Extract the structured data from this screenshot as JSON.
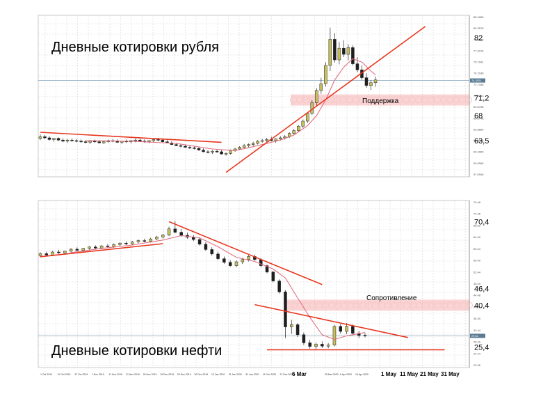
{
  "chart_data": [
    {
      "type": "candlestick",
      "title": "Дневные котировки рубля",
      "price_labels": [
        "82",
        "71,2",
        "68",
        "63,5"
      ],
      "small_axis_labels": [
        "85.4080",
        "80.3578",
        "79.5330",
        "77.3210",
        "75.7941",
        "74.2188",
        "72.7448",
        "70.2213",
        "69.6758",
        "65.6748",
        "63.8680",
        "62.2059",
        "60.4960",
        "59.0565",
        "57.6946"
      ],
      "last_price": "74.3521",
      "x_labels": [],
      "support_zone_label": "Поддержка",
      "support_zone_color": "#f4a0a0",
      "trendline_color": "#e8361e",
      "ma_color": "#e07080",
      "up_candle_color": "#c8c060",
      "down_candle_color": "#1e1e1e",
      "ylim": [
        57,
        86
      ],
      "candles": [
        [
          0,
          63.9,
          64.6,
          63.6,
          64.2
        ],
        [
          1,
          64.2,
          64.5,
          63.8,
          64.0
        ],
        [
          2,
          64.0,
          64.3,
          63.5,
          63.7
        ],
        [
          3,
          63.7,
          64.0,
          63.3,
          63.9
        ],
        [
          4,
          63.9,
          64.1,
          63.4,
          63.6
        ],
        [
          5,
          63.6,
          63.9,
          63.2,
          63.4
        ],
        [
          6,
          63.4,
          63.8,
          63.1,
          63.6
        ],
        [
          7,
          63.6,
          63.9,
          63.3,
          63.5
        ],
        [
          8,
          63.5,
          63.8,
          63.2,
          63.4
        ],
        [
          9,
          63.4,
          63.7,
          63.1,
          63.3
        ],
        [
          10,
          63.3,
          63.6,
          63.0,
          63.2
        ],
        [
          11,
          63.2,
          63.6,
          62.9,
          63.4
        ],
        [
          12,
          63.4,
          63.7,
          63.1,
          63.3
        ],
        [
          13,
          63.3,
          63.6,
          63.0,
          63.1
        ],
        [
          14,
          63.1,
          63.5,
          62.9,
          63.3
        ],
        [
          15,
          63.3,
          63.7,
          63.1,
          63.5
        ],
        [
          16,
          63.5,
          63.8,
          63.2,
          63.4
        ],
        [
          17,
          63.4,
          63.7,
          63.1,
          63.2
        ],
        [
          18,
          63.2,
          63.5,
          62.9,
          63.4
        ],
        [
          19,
          63.4,
          63.7,
          63.1,
          63.3
        ],
        [
          20,
          63.3,
          63.6,
          63.0,
          63.5
        ],
        [
          21,
          63.5,
          63.9,
          63.2,
          63.6
        ],
        [
          22,
          63.6,
          63.9,
          63.3,
          63.4
        ],
        [
          23,
          63.4,
          63.7,
          63.1,
          63.3
        ],
        [
          24,
          63.3,
          63.6,
          63.0,
          63.5
        ],
        [
          25,
          63.5,
          63.8,
          63.2,
          63.7
        ],
        [
          26,
          63.7,
          64.0,
          63.4,
          63.6
        ],
        [
          27,
          63.6,
          63.9,
          63.2,
          63.3
        ],
        [
          28,
          63.3,
          63.6,
          63.0,
          63.1
        ],
        [
          29,
          63.1,
          63.4,
          62.7,
          62.8
        ],
        [
          30,
          62.8,
          63.1,
          62.5,
          62.6
        ],
        [
          31,
          62.6,
          62.9,
          62.3,
          62.5
        ],
        [
          32,
          62.5,
          62.8,
          62.2,
          62.3
        ],
        [
          33,
          62.3,
          62.6,
          62.0,
          62.2
        ],
        [
          34,
          62.2,
          62.5,
          61.9,
          62.1
        ],
        [
          35,
          62.1,
          62.4,
          61.7,
          61.8
        ],
        [
          36,
          61.8,
          62.1,
          61.4,
          61.5
        ],
        [
          37,
          61.5,
          61.8,
          61.2,
          61.4
        ],
        [
          38,
          61.4,
          61.8,
          61.1,
          61.6
        ],
        [
          39,
          61.6,
          62.0,
          61.3,
          61.5
        ],
        [
          40,
          61.5,
          61.8,
          61.0,
          61.1
        ],
        [
          41,
          61.1,
          61.4,
          60.8,
          61.2
        ],
        [
          42,
          61.2,
          61.9,
          61.0,
          61.7
        ],
        [
          43,
          61.7,
          62.2,
          61.5,
          62.0
        ],
        [
          44,
          62.0,
          62.5,
          61.8,
          62.3
        ],
        [
          45,
          62.3,
          62.9,
          62.1,
          62.6
        ],
        [
          46,
          62.6,
          63.0,
          62.3,
          62.8
        ],
        [
          47,
          62.8,
          63.3,
          62.5,
          63.0
        ],
        [
          48,
          63.0,
          63.6,
          62.8,
          63.4
        ],
        [
          49,
          63.4,
          63.8,
          63.1,
          63.5
        ],
        [
          50,
          63.5,
          64.0,
          63.2,
          63.7
        ],
        [
          51,
          63.7,
          64.2,
          63.4,
          63.5
        ],
        [
          52,
          63.5,
          63.9,
          63.1,
          63.8
        ],
        [
          53,
          63.8,
          64.3,
          63.5,
          64.0
        ],
        [
          54,
          64.0,
          64.5,
          63.7,
          64.2
        ],
        [
          55,
          64.2,
          65.0,
          64.0,
          64.8
        ],
        [
          56,
          64.8,
          65.6,
          64.5,
          65.3
        ],
        [
          57,
          65.3,
          66.3,
          65.0,
          66.1
        ],
        [
          58,
          66.1,
          67.3,
          65.8,
          67.0
        ],
        [
          59,
          67.0,
          68.6,
          66.7,
          68.4
        ],
        [
          60,
          68.4,
          70.8,
          68.1,
          70.3
        ],
        [
          61,
          70.3,
          72.9,
          69.6,
          72.5
        ],
        [
          62,
          72.5,
          74.8,
          71.9,
          73.7
        ],
        [
          63,
          73.7,
          77.6,
          73.2,
          77.0
        ],
        [
          64,
          77.0,
          83.8,
          76.0,
          81.7
        ],
        [
          65,
          81.7,
          82.8,
          77.5,
          78.0
        ],
        [
          66,
          78.0,
          81.2,
          77.2,
          80.1
        ],
        [
          67,
          80.1,
          81.5,
          78.5,
          79.0
        ],
        [
          68,
          79.0,
          80.8,
          77.9,
          80.2
        ],
        [
          69,
          80.2,
          80.6,
          77.0,
          77.3
        ],
        [
          70,
          77.3,
          78.5,
          75.8,
          76.2
        ],
        [
          71,
          76.2,
          77.0,
          74.4,
          74.8
        ],
        [
          72,
          74.8,
          75.6,
          73.0,
          73.4
        ],
        [
          73,
          73.4,
          74.4,
          72.6,
          73.9
        ],
        [
          74,
          73.9,
          75.0,
          73.2,
          74.4
        ]
      ],
      "ma": [
        [
          10,
          63.5
        ],
        [
          20,
          63.4
        ],
        [
          30,
          63.0
        ],
        [
          38,
          62.0
        ],
        [
          43,
          61.7
        ],
        [
          48,
          62.6
        ],
        [
          53,
          63.6
        ],
        [
          56,
          64.5
        ],
        [
          59,
          66.2
        ],
        [
          61,
          68.0
        ],
        [
          63,
          70.8
        ],
        [
          65,
          74.4
        ],
        [
          67,
          76.7
        ],
        [
          69,
          78.2
        ],
        [
          71,
          77.6
        ],
        [
          73,
          76.0
        ],
        [
          74,
          75.3
        ]
      ],
      "trendlines": [
        {
          "from": [
            0,
            65.0
          ],
          "to": [
            40,
            63.2
          ]
        },
        {
          "from": [
            41,
            57.8
          ],
          "to": [
            85,
            84.0
          ]
        }
      ],
      "zone": [
        69.8,
        71.8
      ],
      "hline": 74.3
    },
    {
      "type": "candlestick",
      "title": "Дневные котировки нефти",
      "price_labels": [
        "70,4",
        "46,4",
        "40,4",
        "25,4"
      ],
      "small_axis_labels": [
        "76.48",
        "72.46",
        "68.52",
        "64.40",
        "60.44",
        "56.40",
        "52.44",
        "48.40",
        "44.48",
        "40.56",
        "36.40",
        "32.44",
        "28.40",
        "24.44",
        "20.36"
      ],
      "last_price": "29.52",
      "x_labels": [
        "1 Oct 2019",
        "11 Oct 2019",
        "22 Oct 2019",
        "1 Nov 2019",
        "11 Nov 2019",
        "21 Nov 2019",
        "29 Nov 2019",
        "10 Dec 2019",
        "20 Dec 2019",
        "30 Dec 2019",
        "10 Jan 2020",
        "21 Jan 2020",
        "31 Jan 2020",
        "11 Feb 2020",
        "21 Feb 2020",
        "25 Mar 2020",
        "6 Apr 2020",
        "16 Apr 2020"
      ],
      "x_labels_big": [
        "6 Mar",
        "1 May",
        "11 May",
        "21 May",
        "31 May"
      ],
      "resistance_zone_label": "Сопротивление",
      "resistance_zone_color": "#f4a0a0",
      "trendline_color": "#e8361e",
      "ma_color": "#e07080",
      "up_candle_color": "#c8c060",
      "down_candle_color": "#1e1e1e",
      "ylim": [
        18,
        78
      ],
      "candles": [
        [
          0,
          58.2,
          59.4,
          57.6,
          58.9
        ],
        [
          1,
          58.9,
          59.6,
          58.1,
          58.4
        ],
        [
          2,
          58.4,
          59.8,
          58.0,
          59.5
        ],
        [
          3,
          59.5,
          60.3,
          58.9,
          59.2
        ],
        [
          4,
          59.2,
          60.0,
          58.7,
          59.8
        ],
        [
          5,
          59.8,
          60.9,
          59.3,
          60.5
        ],
        [
          6,
          60.5,
          61.2,
          59.9,
          60.1
        ],
        [
          7,
          60.1,
          61.0,
          59.6,
          60.8
        ],
        [
          8,
          60.8,
          61.6,
          60.2,
          61.3
        ],
        [
          9,
          61.3,
          61.9,
          60.6,
          60.9
        ],
        [
          10,
          60.9,
          62.0,
          60.5,
          61.7
        ],
        [
          11,
          61.7,
          62.4,
          61.0,
          61.4
        ],
        [
          12,
          61.4,
          62.6,
          61.0,
          62.2
        ],
        [
          13,
          62.2,
          63.0,
          61.6,
          62.7
        ],
        [
          14,
          62.7,
          63.3,
          62.0,
          62.4
        ],
        [
          15,
          62.4,
          63.5,
          62.0,
          63.1
        ],
        [
          16,
          63.1,
          64.0,
          62.6,
          63.6
        ],
        [
          17,
          63.6,
          64.3,
          63.0,
          63.3
        ],
        [
          18,
          63.3,
          64.6,
          62.9,
          64.2
        ],
        [
          19,
          64.2,
          65.3,
          63.8,
          64.9
        ],
        [
          20,
          64.9,
          66.0,
          64.3,
          65.6
        ],
        [
          21,
          65.6,
          68.6,
          65.2,
          67.8
        ],
        [
          22,
          67.8,
          70.6,
          66.2,
          66.6
        ],
        [
          23,
          66.6,
          67.8,
          65.0,
          65.5
        ],
        [
          24,
          65.5,
          66.5,
          64.2,
          64.8
        ],
        [
          25,
          64.8,
          65.6,
          63.4,
          64.0
        ],
        [
          26,
          64.0,
          64.8,
          61.8,
          62.3
        ],
        [
          27,
          62.3,
          63.0,
          59.9,
          60.4
        ],
        [
          28,
          60.4,
          61.2,
          58.2,
          58.8
        ],
        [
          29,
          58.8,
          59.6,
          56.6,
          57.1
        ],
        [
          30,
          57.1,
          57.9,
          55.3,
          55.8
        ],
        [
          31,
          55.8,
          56.6,
          54.2,
          54.6
        ],
        [
          32,
          54.6,
          56.5,
          54.0,
          56.0
        ],
        [
          33,
          56.0,
          57.4,
          55.2,
          56.8
        ],
        [
          34,
          56.8,
          58.4,
          56.1,
          57.9
        ],
        [
          35,
          57.9,
          58.6,
          56.3,
          56.8
        ],
        [
          36,
          56.8,
          57.3,
          54.1,
          54.6
        ],
        [
          37,
          54.6,
          55.0,
          51.8,
          52.3
        ],
        [
          38,
          52.3,
          52.8,
          48.6,
          49.1
        ],
        [
          39,
          49.1,
          49.7,
          44.6,
          45.2
        ],
        [
          40,
          45.2,
          45.8,
          28.6,
          32.6
        ],
        [
          41,
          32.6,
          35.2,
          30.1,
          33.4
        ],
        [
          42,
          33.4,
          34.0,
          29.0,
          29.8
        ],
        [
          43,
          29.8,
          30.6,
          26.2,
          26.9
        ],
        [
          44,
          26.9,
          28.0,
          24.8,
          25.6
        ],
        [
          45,
          25.6,
          27.0,
          24.6,
          26.4
        ],
        [
          46,
          26.4,
          27.4,
          25.0,
          25.7
        ],
        [
          47,
          25.7,
          26.8,
          24.9,
          26.1
        ],
        [
          48,
          26.1,
          33.4,
          25.6,
          32.8
        ],
        [
          49,
          32.8,
          33.6,
          30.2,
          31.0
        ],
        [
          50,
          31.0,
          34.0,
          30.0,
          32.8
        ],
        [
          51,
          32.8,
          33.5,
          29.6,
          30.3
        ],
        [
          52,
          30.3,
          31.2,
          28.6,
          29.6
        ],
        [
          53,
          29.6,
          30.4,
          28.8,
          29.5
        ]
      ],
      "ma": [
        [
          5,
          59.3
        ],
        [
          10,
          60.8
        ],
        [
          15,
          62.0
        ],
        [
          20,
          63.8
        ],
        [
          23,
          65.4
        ],
        [
          26,
          64.6
        ],
        [
          29,
          61.4
        ],
        [
          32,
          57.6
        ],
        [
          35,
          56.1
        ],
        [
          38,
          53.4
        ],
        [
          40,
          50.2
        ],
        [
          42,
          43.0
        ],
        [
          44,
          36.0
        ],
        [
          46,
          29.8
        ],
        [
          48,
          28.1
        ],
        [
          50,
          29.4
        ],
        [
          53,
          30.6
        ]
      ],
      "trendlines": [
        {
          "from": [
            0,
            57.8
          ],
          "to": [
            20,
            62.5
          ]
        },
        {
          "from": [
            21,
            70.4
          ],
          "to": [
            46,
            47.8
          ]
        },
        {
          "from": [
            35,
            40.6
          ],
          "to": [
            60,
            28.8
          ]
        },
        {
          "from": [
            37,
            24.4
          ],
          "to": [
            66,
            24.4
          ]
        }
      ],
      "zone": [
        38.4,
        42.4
      ],
      "hline": 29.4
    }
  ]
}
